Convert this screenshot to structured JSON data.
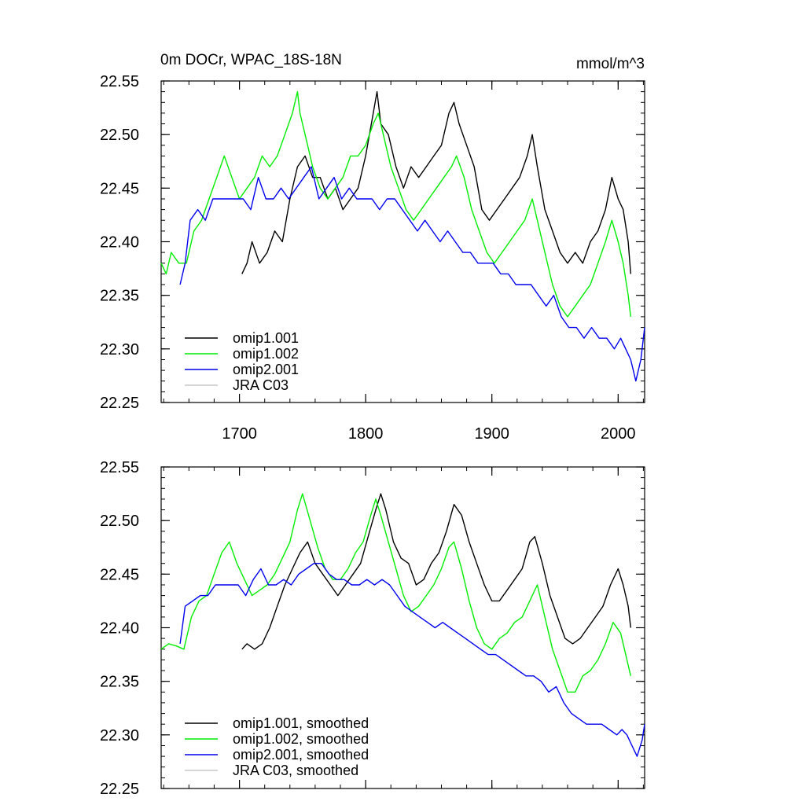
{
  "chart_data": [
    {
      "type": "line",
      "title": "0m DOCr, WPAC_18S-18N",
      "units": "mmol/m^3",
      "xlabel": "",
      "ylabel": "",
      "xlim": [
        1638,
        2021
      ],
      "ylim": [
        22.25,
        22.55
      ],
      "x_ticks": [
        1700,
        1800,
        1900,
        2000
      ],
      "x_tick_labels": [
        "1700",
        "1800",
        "1900",
        "2000"
      ],
      "y_ticks": [
        22.25,
        22.3,
        22.35,
        22.4,
        22.45,
        22.5,
        22.55
      ],
      "y_tick_labels": [
        "22.25",
        "22.30",
        "22.35",
        "22.40",
        "22.45",
        "22.50",
        "22.55"
      ],
      "legend_position": "bottom-left",
      "series": [
        {
          "name": "omip1.001",
          "color": "#000000",
          "x": [
            1702,
            1706,
            1710,
            1716,
            1722,
            1728,
            1734,
            1740,
            1746,
            1752,
            1758,
            1764,
            1770,
            1776,
            1782,
            1788,
            1794,
            1800,
            1806,
            1809,
            1812,
            1818,
            1824,
            1830,
            1836,
            1842,
            1848,
            1854,
            1860,
            1866,
            1870,
            1874,
            1880,
            1886,
            1892,
            1898,
            1904,
            1910,
            1916,
            1922,
            1928,
            1932,
            1936,
            1942,
            1948,
            1954,
            1960,
            1966,
            1972,
            1978,
            1984,
            1990,
            1995,
            2000,
            2004,
            2008,
            2010
          ],
          "y": [
            22.37,
            22.38,
            22.4,
            22.38,
            22.39,
            22.41,
            22.4,
            22.44,
            22.47,
            22.48,
            22.46,
            22.46,
            22.44,
            22.45,
            22.43,
            22.44,
            22.45,
            22.48,
            22.52,
            22.54,
            22.51,
            22.5,
            22.47,
            22.45,
            22.47,
            22.46,
            22.47,
            22.48,
            22.49,
            22.52,
            22.53,
            22.51,
            22.49,
            22.47,
            22.43,
            22.42,
            22.43,
            22.44,
            22.45,
            22.46,
            22.48,
            22.5,
            22.47,
            22.43,
            22.41,
            22.39,
            22.38,
            22.39,
            22.38,
            22.4,
            22.41,
            22.43,
            22.46,
            22.44,
            22.43,
            22.4,
            22.37
          ]
        },
        {
          "name": "omip1.002",
          "color": "#00ee00",
          "x": [
            1638,
            1642,
            1646,
            1652,
            1658,
            1664,
            1670,
            1676,
            1682,
            1688,
            1694,
            1700,
            1706,
            1712,
            1718,
            1724,
            1730,
            1736,
            1742,
            1746,
            1748,
            1752,
            1758,
            1764,
            1770,
            1776,
            1782,
            1788,
            1794,
            1800,
            1806,
            1810,
            1814,
            1820,
            1826,
            1832,
            1838,
            1844,
            1850,
            1856,
            1862,
            1868,
            1872,
            1878,
            1884,
            1890,
            1896,
            1902,
            1908,
            1914,
            1920,
            1926,
            1932,
            1936,
            1942,
            1948,
            1954,
            1960,
            1966,
            1972,
            1978,
            1984,
            1990,
            1995,
            2000,
            2004,
            2008,
            2010
          ],
          "y": [
            22.38,
            22.37,
            22.39,
            22.38,
            22.38,
            22.41,
            22.42,
            22.44,
            22.46,
            22.48,
            22.46,
            22.44,
            22.45,
            22.46,
            22.48,
            22.47,
            22.48,
            22.5,
            22.52,
            22.54,
            22.52,
            22.5,
            22.47,
            22.45,
            22.44,
            22.45,
            22.46,
            22.48,
            22.48,
            22.49,
            22.51,
            22.52,
            22.5,
            22.47,
            22.45,
            22.43,
            22.42,
            22.43,
            22.44,
            22.45,
            22.46,
            22.47,
            22.48,
            22.46,
            22.43,
            22.41,
            22.39,
            22.38,
            22.39,
            22.4,
            22.41,
            22.42,
            22.44,
            22.42,
            22.39,
            22.36,
            22.34,
            22.33,
            22.34,
            22.35,
            22.36,
            22.38,
            22.4,
            22.42,
            22.4,
            22.38,
            22.35,
            22.33
          ]
        },
        {
          "name": "omip2.001",
          "color": "#0000ee",
          "x": [
            1653,
            1657,
            1661,
            1667,
            1673,
            1679,
            1685,
            1691,
            1697,
            1703,
            1709,
            1715,
            1721,
            1727,
            1733,
            1739,
            1745,
            1751,
            1757,
            1763,
            1769,
            1775,
            1781,
            1787,
            1793,
            1799,
            1805,
            1811,
            1817,
            1823,
            1829,
            1835,
            1841,
            1847,
            1853,
            1859,
            1865,
            1871,
            1877,
            1883,
            1889,
            1895,
            1901,
            1907,
            1913,
            1919,
            1925,
            1931,
            1937,
            1943,
            1949,
            1955,
            1961,
            1967,
            1973,
            1979,
            1985,
            1991,
            1997,
            2002,
            2006,
            2010,
            2014,
            2018,
            2021
          ],
          "y": [
            22.36,
            22.38,
            22.42,
            22.43,
            22.42,
            22.44,
            22.44,
            22.44,
            22.44,
            22.44,
            22.43,
            22.46,
            22.44,
            22.44,
            22.45,
            22.44,
            22.45,
            22.46,
            22.47,
            22.44,
            22.45,
            22.46,
            22.44,
            22.45,
            22.44,
            22.44,
            22.44,
            22.43,
            22.44,
            22.44,
            22.43,
            22.42,
            22.41,
            22.42,
            22.41,
            22.4,
            22.41,
            22.4,
            22.39,
            22.39,
            22.38,
            22.38,
            22.38,
            22.37,
            22.37,
            22.36,
            22.36,
            22.36,
            22.35,
            22.34,
            22.35,
            22.33,
            22.32,
            22.32,
            22.31,
            22.32,
            22.31,
            22.31,
            22.3,
            22.31,
            22.3,
            22.29,
            22.27,
            22.29,
            22.32
          ]
        },
        {
          "name": "JRA C03",
          "color": "#c8c8c8",
          "x": [],
          "y": []
        }
      ]
    },
    {
      "type": "line",
      "title": "",
      "xlabel": "",
      "ylabel": "",
      "xlim": [
        1638,
        2021
      ],
      "ylim": [
        22.25,
        22.55
      ],
      "x_ticks": [
        1700,
        1800,
        1900,
        2000
      ],
      "x_tick_labels": [],
      "y_ticks": [
        22.25,
        22.3,
        22.35,
        22.4,
        22.45,
        22.5,
        22.55
      ],
      "y_tick_labels": [
        "22.25",
        "22.30",
        "22.35",
        "22.40",
        "22.45",
        "22.50",
        "22.55"
      ],
      "legend_position": "bottom-left",
      "series": [
        {
          "name": "omip1.001, smoothed",
          "color": "#000000",
          "x": [
            1702,
            1706,
            1712,
            1718,
            1724,
            1730,
            1736,
            1742,
            1748,
            1754,
            1760,
            1766,
            1772,
            1778,
            1784,
            1790,
            1796,
            1802,
            1808,
            1812,
            1816,
            1822,
            1828,
            1834,
            1840,
            1846,
            1852,
            1858,
            1864,
            1870,
            1876,
            1882,
            1888,
            1894,
            1900,
            1906,
            1912,
            1918,
            1924,
            1930,
            1934,
            1940,
            1946,
            1952,
            1958,
            1964,
            1970,
            1976,
            1982,
            1988,
            1994,
            2000,
            2004,
            2008,
            2010
          ],
          "y": [
            22.38,
            22.385,
            22.38,
            22.385,
            22.4,
            22.42,
            22.44,
            22.455,
            22.47,
            22.48,
            22.46,
            22.45,
            22.44,
            22.43,
            22.44,
            22.45,
            22.46,
            22.485,
            22.51,
            22.525,
            22.51,
            22.48,
            22.465,
            22.46,
            22.44,
            22.445,
            22.46,
            22.47,
            22.49,
            22.515,
            22.505,
            22.48,
            22.46,
            22.44,
            22.425,
            22.425,
            22.435,
            22.445,
            22.455,
            22.48,
            22.485,
            22.46,
            22.43,
            22.41,
            22.39,
            22.385,
            22.39,
            22.4,
            22.41,
            22.42,
            22.44,
            22.455,
            22.44,
            22.42,
            22.4
          ]
        },
        {
          "name": "omip1.002, smoothed",
          "color": "#00ee00",
          "x": [
            1638,
            1644,
            1650,
            1656,
            1662,
            1668,
            1674,
            1680,
            1686,
            1692,
            1698,
            1704,
            1710,
            1716,
            1722,
            1728,
            1734,
            1740,
            1746,
            1750,
            1756,
            1762,
            1768,
            1774,
            1780,
            1786,
            1792,
            1798,
            1804,
            1808,
            1812,
            1818,
            1824,
            1830,
            1836,
            1842,
            1848,
            1854,
            1860,
            1866,
            1870,
            1876,
            1882,
            1888,
            1894,
            1900,
            1906,
            1912,
            1918,
            1924,
            1930,
            1936,
            1942,
            1948,
            1954,
            1960,
            1966,
            1972,
            1978,
            1984,
            1990,
            1996,
            2002,
            2006,
            2010
          ],
          "y": [
            22.38,
            22.385,
            22.383,
            22.38,
            22.41,
            22.425,
            22.43,
            22.45,
            22.47,
            22.48,
            22.46,
            22.445,
            22.43,
            22.435,
            22.44,
            22.45,
            22.465,
            22.48,
            22.51,
            22.525,
            22.5,
            22.475,
            22.455,
            22.445,
            22.445,
            22.455,
            22.47,
            22.48,
            22.505,
            22.52,
            22.505,
            22.48,
            22.455,
            22.43,
            22.415,
            22.42,
            22.43,
            22.44,
            22.455,
            22.475,
            22.48,
            22.455,
            22.425,
            22.4,
            22.385,
            22.38,
            22.39,
            22.395,
            22.405,
            22.41,
            22.425,
            22.44,
            22.41,
            22.38,
            22.36,
            22.34,
            22.34,
            22.355,
            22.36,
            22.37,
            22.385,
            22.405,
            22.395,
            22.375,
            22.355
          ]
        },
        {
          "name": "omip2.001, smoothed",
          "color": "#0000ee",
          "x": [
            1653,
            1657,
            1663,
            1669,
            1675,
            1681,
            1687,
            1693,
            1699,
            1705,
            1711,
            1717,
            1723,
            1729,
            1735,
            1741,
            1747,
            1753,
            1759,
            1765,
            1771,
            1777,
            1783,
            1789,
            1795,
            1801,
            1807,
            1813,
            1819,
            1825,
            1831,
            1837,
            1843,
            1849,
            1855,
            1861,
            1867,
            1873,
            1879,
            1885,
            1891,
            1897,
            1903,
            1909,
            1915,
            1921,
            1927,
            1933,
            1939,
            1945,
            1951,
            1957,
            1963,
            1969,
            1975,
            1981,
            1987,
            1993,
            1999,
            2003,
            2007,
            2011,
            2015,
            2019,
            2021
          ],
          "y": [
            22.385,
            22.42,
            22.425,
            22.43,
            22.43,
            22.44,
            22.44,
            22.44,
            22.44,
            22.43,
            22.445,
            22.455,
            22.44,
            22.44,
            22.445,
            22.44,
            22.45,
            22.455,
            22.46,
            22.46,
            22.45,
            22.445,
            22.445,
            22.44,
            22.44,
            22.445,
            22.44,
            22.445,
            22.44,
            22.43,
            22.42,
            22.415,
            22.41,
            22.405,
            22.4,
            22.405,
            22.4,
            22.395,
            22.39,
            22.385,
            22.38,
            22.375,
            22.375,
            22.37,
            22.365,
            22.36,
            22.355,
            22.355,
            22.35,
            22.34,
            22.345,
            22.33,
            22.32,
            22.315,
            22.31,
            22.31,
            22.31,
            22.305,
            22.3,
            22.305,
            22.3,
            22.29,
            22.28,
            22.295,
            22.31
          ]
        },
        {
          "name": "JRA C03, smoothed",
          "color": "#c8c8c8",
          "x": [],
          "y": []
        }
      ]
    }
  ]
}
